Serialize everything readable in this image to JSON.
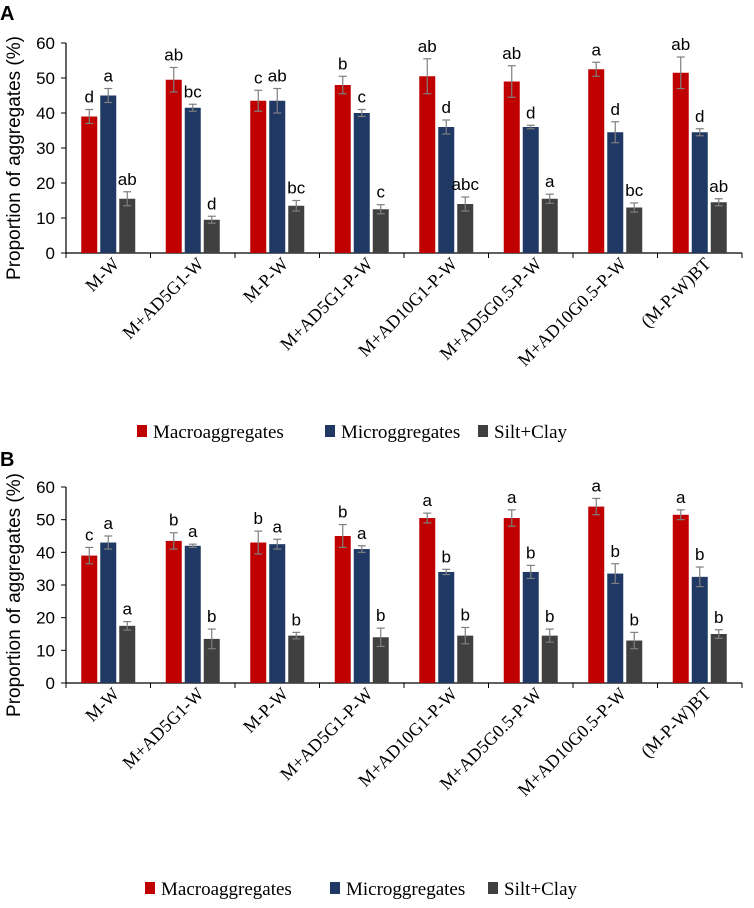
{
  "figure": {
    "colors": {
      "Macroaggregates": "#c00000",
      "Microggregates": "#1f3864",
      "Silt+Clay": "#404040"
    }
  },
  "chart_data": [
    {
      "type": "bar",
      "panel": "A",
      "title": "",
      "xlabel": "",
      "ylabel": "Proportion of aggregates (%)",
      "ylim": [
        0,
        60
      ],
      "yticks": [
        0,
        10,
        20,
        30,
        40,
        50,
        60
      ],
      "categories": [
        "M-W",
        "M+AD5G1-W",
        "M-P-W",
        "M+AD5G1-P-W",
        "M+AD10G1-P-W",
        "M+AD5G0.5-P-W",
        "M+AD10G0.5-P-W",
        "(M-P-W)BT"
      ],
      "series": [
        {
          "name": "Macroaggregates",
          "values": [
            39,
            49.5,
            43.5,
            48,
            50.5,
            49,
            52.5,
            51.5
          ],
          "errors": [
            2,
            3.5,
            3,
            2.5,
            5,
            4.5,
            2,
            4.5
          ],
          "labels": [
            "d",
            "ab",
            "c",
            "b",
            "ab",
            "ab",
            "a",
            "ab"
          ]
        },
        {
          "name": "Microggregates",
          "values": [
            45,
            41.5,
            43.5,
            40,
            36,
            36,
            34.5,
            34.5
          ],
          "errors": [
            2,
            1,
            3.5,
            1,
            2,
            0.5,
            3,
            1
          ],
          "labels": [
            "a",
            "bc",
            "ab",
            "c",
            "d",
            "d",
            "d",
            "d"
          ]
        },
        {
          "name": "Silt+Clay",
          "values": [
            15.5,
            9.5,
            13.5,
            12.5,
            14,
            15.5,
            13,
            14.5
          ],
          "errors": [
            2,
            1,
            1.5,
            1.3,
            2,
            1.3,
            1.3,
            1
          ],
          "labels": [
            "ab",
            "d",
            "bc",
            "c",
            "abc",
            "a",
            "bc",
            "ab"
          ]
        }
      ],
      "legend": [
        "Macroaggregates",
        "Microggregates",
        "Silt+Clay"
      ],
      "legend_position": "bottom",
      "grid": false
    },
    {
      "type": "bar",
      "panel": "B",
      "title": "",
      "xlabel": "",
      "ylabel": "Proportion of aggregates (%)",
      "ylim": [
        0,
        60
      ],
      "yticks": [
        0,
        10,
        20,
        30,
        40,
        50,
        60
      ],
      "categories": [
        "M-W",
        "M+AD5G1-W",
        "M-P-W",
        "M+AD5G1-P-W",
        "M+AD10G1-P-W",
        "M+AD5G0.5-P-W",
        "M+AD10G0.5-P-W",
        "(M-P-W)BT"
      ],
      "series": [
        {
          "name": "Macroaggregates",
          "values": [
            39,
            43.5,
            43,
            45,
            50.5,
            50.5,
            54,
            51.5
          ],
          "errors": [
            2.5,
            2.5,
            3.5,
            3.5,
            1.5,
            2.5,
            2.5,
            1.5
          ],
          "labels": [
            "c",
            "b",
            "b",
            "b",
            "a",
            "a",
            "a",
            "a"
          ]
        },
        {
          "name": "Microggregates",
          "values": [
            43,
            42,
            42.5,
            41,
            34,
            34,
            33.5,
            32.5
          ],
          "errors": [
            2,
            0.5,
            1.5,
            1,
            0.8,
            2,
            3,
            3
          ],
          "labels": [
            "a",
            "a",
            "a",
            "a",
            "b",
            "b",
            "b",
            "b"
          ]
        },
        {
          "name": "Silt+Clay",
          "values": [
            17.5,
            13.5,
            14.5,
            14,
            14.5,
            14.5,
            13,
            15
          ],
          "errors": [
            1.3,
            3,
            1,
            2.8,
            2.5,
            2,
            2.5,
            1.3
          ],
          "labels": [
            "a",
            "b",
            "b",
            "b",
            "b",
            "b",
            "b",
            "b"
          ]
        }
      ],
      "legend": [
        "Macroaggregates",
        "Microggregates",
        "Silt+Clay"
      ],
      "legend_position": "bottom",
      "grid": false
    }
  ]
}
